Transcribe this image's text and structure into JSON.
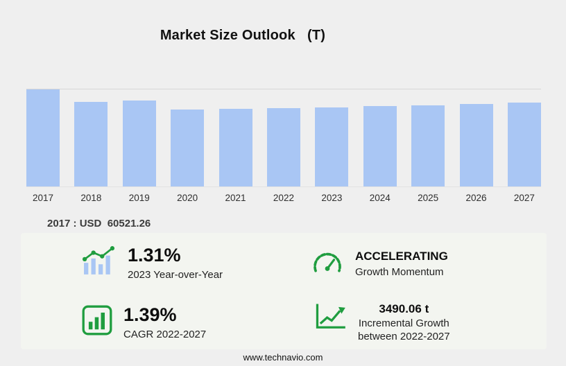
{
  "title": "Market Size Outlook   (T)",
  "value_label": "2017 : USD  60521.26",
  "footer": "www.technavio.com",
  "colors": {
    "background": "#efefef",
    "bar": "#a9c6f4",
    "accent_green": "#1f9d3f",
    "panel": "#f3f5f0"
  },
  "chart_data": {
    "type": "bar",
    "title": "Market Size Outlook (T)",
    "categories": [
      "2017",
      "2018",
      "2019",
      "2020",
      "2021",
      "2022",
      "2023",
      "2024",
      "2025",
      "2026",
      "2027"
    ],
    "values": [
      60521.26,
      52900,
      53650,
      47800,
      48300,
      48810,
      49450,
      50120,
      50800,
      51550,
      52300
    ],
    "xlabel": "",
    "ylabel": "",
    "ylim": [
      0,
      60521.26
    ],
    "grid": "single top gridline, baseline",
    "legend": "none",
    "bar_color": "#a9c6f4",
    "annotation": "2017 : USD 60521.26"
  },
  "stats": [
    {
      "icon": "yoy-trend-icon",
      "value": "1.31%",
      "label": "2023 Year-over-Year"
    },
    {
      "icon": "speedometer-icon",
      "value": "ACCELERATING",
      "label": "Growth Momentum"
    },
    {
      "icon": "cagr-bars-icon",
      "value": "1.39%",
      "label": "CAGR 2022-2027"
    },
    {
      "icon": "growth-chart-icon",
      "value": "3490.06 t",
      "label": "Incremental Growth",
      "label2": "between 2022-2027"
    }
  ]
}
